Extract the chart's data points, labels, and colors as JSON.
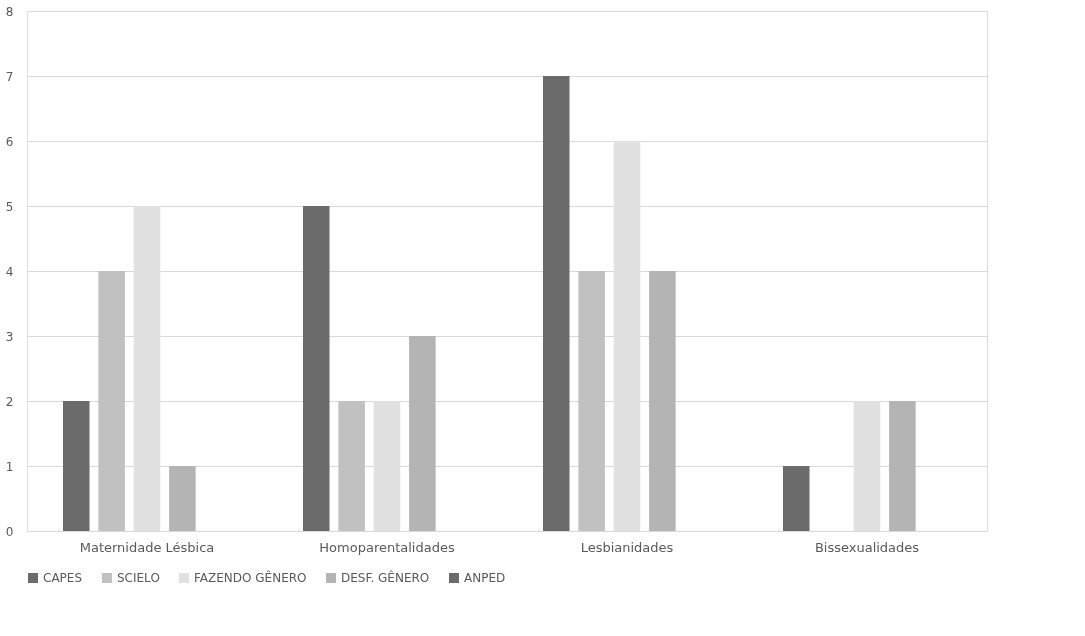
{
  "chart_data": {
    "type": "bar",
    "categories": [
      "Maternidade Lésbica",
      "Homoparentalidades",
      "Lesbianidades",
      "Bissexualidades"
    ],
    "series": [
      {
        "name": "CAPES",
        "color": "#6b6b6b",
        "values": [
          2,
          5,
          7,
          1
        ]
      },
      {
        "name": "SCIELO",
        "color": "#c1c1c1",
        "values": [
          4,
          2,
          4,
          0
        ]
      },
      {
        "name": "FAZENDO GÊNERO",
        "color": "#e1e1e1",
        "values": [
          5,
          2,
          6,
          2
        ]
      },
      {
        "name": "DESF. GÊNERO",
        "color": "#b4b4b4",
        "values": [
          1,
          3,
          4,
          2
        ]
      },
      {
        "name": "ANPED",
        "color": "#6b6b6b",
        "values": [
          0,
          0,
          0,
          0
        ]
      }
    ],
    "ylim": [
      0,
      8
    ],
    "yticks": [
      0,
      1,
      2,
      3,
      4,
      5,
      6,
      7,
      8
    ],
    "grid": "y",
    "legend": "bottom"
  }
}
